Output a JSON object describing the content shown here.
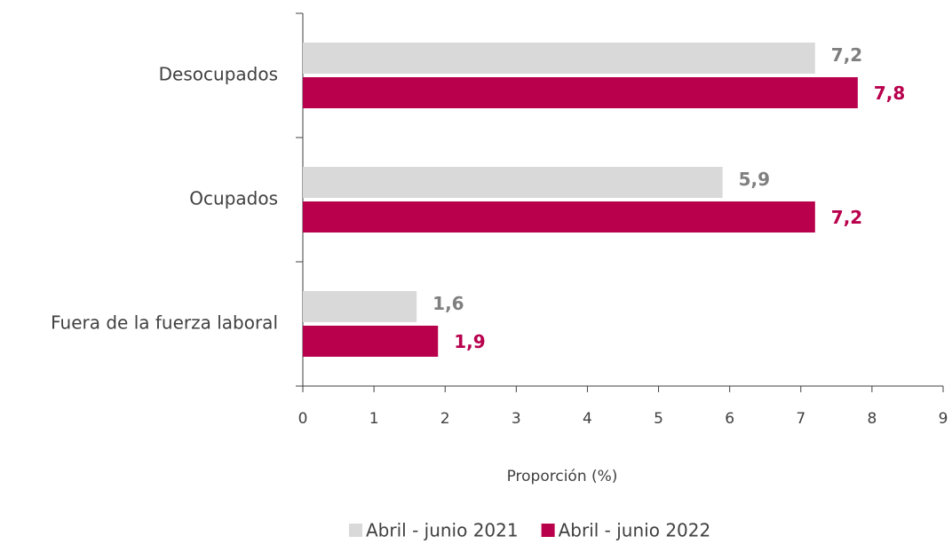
{
  "chart_data": {
    "type": "bar",
    "orientation": "horizontal",
    "categories": [
      "Desocupados",
      "Ocupados",
      "Fuera de la fuerza laboral"
    ],
    "series": [
      {
        "name": "Abril - junio 2021",
        "color": "#d9d9d9",
        "label_color": "#7f7f7f",
        "values": [
          7.2,
          5.9,
          1.6
        ],
        "value_labels": [
          "7,2",
          "5,9",
          "1,6"
        ]
      },
      {
        "name": "Abril - junio 2022",
        "color": "#b8004d",
        "label_color": "#b8004d",
        "values": [
          7.8,
          7.2,
          1.9
        ],
        "value_labels": [
          "7,8",
          "7,2",
          "1,9"
        ]
      }
    ],
    "xlabel": "Proporción (%)",
    "xlim": [
      0,
      9
    ],
    "xticks": [
      0,
      1,
      2,
      3,
      4,
      5,
      6,
      7,
      8,
      9
    ],
    "grid": false,
    "legend": "bottom"
  }
}
